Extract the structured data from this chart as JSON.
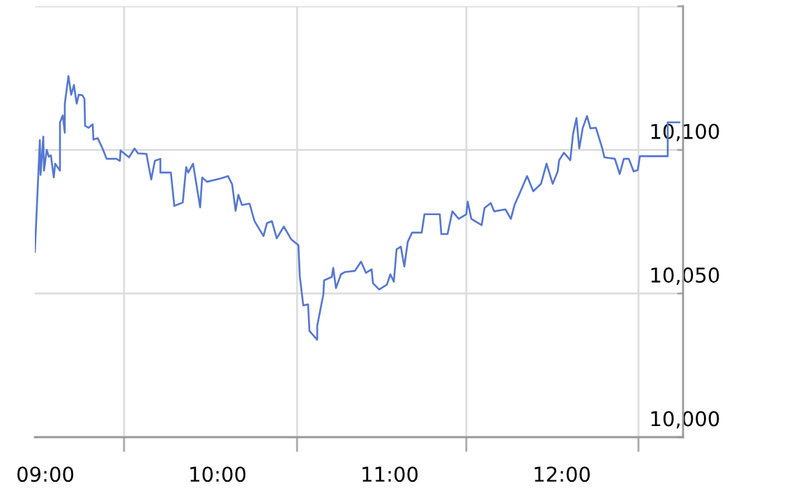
{
  "chart_data": {
    "type": "line",
    "xlim": [
      8.939,
      12.704
    ],
    "xticks": [
      {
        "value": 9,
        "label": "09:00"
      },
      {
        "value": 10,
        "label": "10:00"
      },
      {
        "value": 11,
        "label": "11:00"
      },
      {
        "value": 12,
        "label": "12:00"
      },
      {
        "value": 9.457,
        "label": null
      },
      {
        "value": 10.462,
        "label": null
      },
      {
        "value": 11.445,
        "label": null
      },
      {
        "value": 12.445,
        "label": null
      }
    ],
    "ylim": [
      10000,
      10150
    ],
    "yticks": [
      {
        "value": 10000,
        "label": "10,000"
      },
      {
        "value": 10050,
        "label": "10,050"
      },
      {
        "value": 10100,
        "label": "10,100"
      },
      {
        "value": 10150,
        "label": null
      }
    ],
    "grid": true,
    "series": [
      {
        "color": "#5577d4",
        "x": [
          8.939,
          8.968,
          8.972,
          8.988,
          8.992,
          9.008,
          9.02,
          9.032,
          9.049,
          9.057,
          9.085,
          9.085,
          9.101,
          9.113,
          9.113,
          9.134,
          9.15,
          9.166,
          9.182,
          9.194,
          9.215,
          9.227,
          9.231,
          9.251,
          9.275,
          9.279,
          9.304,
          9.332,
          9.356,
          9.413,
          9.433,
          9.437,
          9.486,
          9.518,
          9.538,
          9.587,
          9.615,
          9.636,
          9.668,
          9.668,
          9.729,
          9.749,
          9.798,
          9.818,
          9.83,
          9.858,
          9.899,
          9.911,
          9.939,
          10.02,
          10.061,
          10.085,
          10.105,
          10.121,
          10.142,
          10.186,
          10.215,
          10.267,
          10.287,
          10.316,
          10.344,
          10.385,
          10.429,
          10.47,
          10.478,
          10.498,
          10.526,
          10.534,
          10.579,
          10.579,
          10.615,
          10.619,
          10.664,
          10.672,
          10.688,
          10.717,
          10.741,
          10.798,
          10.834,
          10.862,
          10.895,
          10.903,
          10.939,
          10.984,
          11.004,
          11.024,
          11.04,
          11.065,
          11.085,
          11.105,
          11.13,
          11.186,
          11.202,
          11.291,
          11.3,
          11.336,
          11.364,
          11.401,
          11.445,
          11.453,
          11.474,
          11.534,
          11.551,
          11.587,
          11.607,
          11.672,
          11.704,
          11.725,
          11.753,
          11.798,
          11.834,
          11.879,
          11.911,
          11.947,
          11.976,
          11.984,
          12.012,
          12.049,
          12.065,
          12.085,
          12.101,
          12.121,
          12.146,
          12.166,
          12.198,
          12.235,
          12.247,
          12.308,
          12.336,
          12.36,
          12.389,
          12.417,
          12.441,
          12.453,
          12.615,
          12.615,
          12.684
        ],
        "values": [
          10064.4,
          10103.4,
          10091.3,
          10104.6,
          10092.8,
          10100,
          10097.6,
          10098.1,
          10090.4,
          10095.2,
          10092.8,
          10109.6,
          10112,
          10106,
          10116.1,
          10125.7,
          10119.2,
          10122.6,
          10116.1,
          10119.2,
          10119,
          10117.8,
          10108.4,
          10107.7,
          10108.9,
          10103.6,
          10104.1,
          10100.5,
          10096.9,
          10096.9,
          10096.2,
          10099.8,
          10097.4,
          10100.5,
          10098.8,
          10098.6,
          10089.7,
          10096.2,
          10096.9,
          10092.1,
          10092.1,
          10080.5,
          10081.7,
          10094,
          10092.1,
          10095.2,
          10080,
          10090.4,
          10088.9,
          10090.1,
          10090.9,
          10088,
          10078.8,
          10084.4,
          10080.8,
          10081.3,
          10075.2,
          10070,
          10074.5,
          10075.2,
          10069.2,
          10073.3,
          10068.8,
          10066.8,
          10056,
          10045.9,
          10046.2,
          10037,
          10033.9,
          10038.7,
          10049.8,
          10054.6,
          10055.8,
          10058.9,
          10051.9,
          10056.7,
          10057.5,
          10057.9,
          10061.1,
          10057.2,
          10058.4,
          10053.6,
          10051.4,
          10053.1,
          10056.7,
          10054.1,
          10065.4,
          10066.3,
          10059.4,
          10068,
          10071.2,
          10071.2,
          10077.6,
          10077.6,
          10070.7,
          10070.7,
          10078.6,
          10076,
          10077.6,
          10082,
          10076,
          10073.8,
          10079.8,
          10081.5,
          10078.6,
          10079.3,
          10076,
          10080.8,
          10084.6,
          10090.9,
          10085.6,
          10088.2,
          10095.2,
          10088.2,
          10092.5,
          10096.4,
          10099,
          10096.4,
          10105.5,
          10111.1,
          10100.5,
          10107.5,
          10111.8,
          10107.5,
          10107.7,
          10100.5,
          10097.4,
          10096.9,
          10091.6,
          10096.9,
          10096.9,
          10092.5,
          10093,
          10097.8,
          10097.8,
          10109.6,
          10109.6
        ]
      }
    ]
  }
}
